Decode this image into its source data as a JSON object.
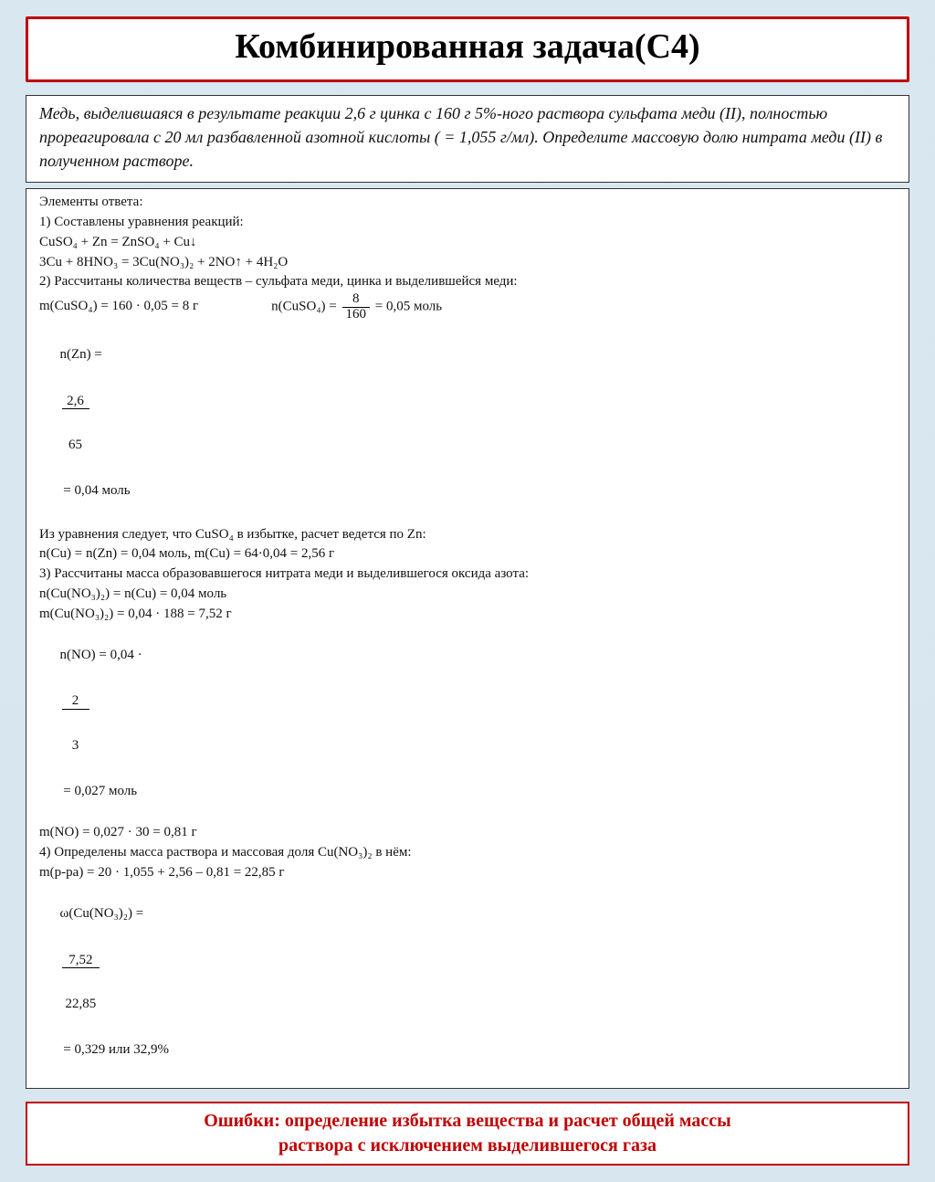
{
  "colors": {
    "background": "#d8e6f0",
    "panel_bg": "#ffffff",
    "border_red": "#c00000",
    "border_dark": "#333333",
    "text": "#111111",
    "error_text": "#c00000"
  },
  "typography": {
    "family": "Times New Roman",
    "title_size_pt": 28,
    "problem_size_pt": 14,
    "solution_size_pt": 11,
    "error_size_pt": 15,
    "problem_style": "italic",
    "error_weight": "bold"
  },
  "title": "Комбинированная задача(С4)",
  "problem": "Медь, выделившаяся в результате реакции 2,6 г цинка с 160 г 5%-ного раствора сульфата меди (II), полностью прореагировала с 20 мл разбавленной азотной кислоты (  = 1,055 г/мл). Определите массовую долю нитрата меди (II) в полученном растворе.",
  "solution": {
    "heading": "Элементы ответа:",
    "step1_label": "1) Составлены уравнения реакций:",
    "eq1": "CuSO₄ + Zn = ZnSO₄ + Cu↓",
    "eq2": "3Cu + 8HNO₃ = 3Cu(NO₃)₂ + 2NO↑ + 4H₂O",
    "step2_label": "2) Рассчитаны количества веществ – сульфата меди, цинка и выделившейся меди:",
    "m_cuso4_calc": "m(CuSO₄) = 160 · 0,05 = 8 г",
    "n_cuso4_prefix": "n(CuSO₄) = ",
    "n_cuso4_frac": {
      "num": "8",
      "den": "160"
    },
    "n_cuso4_suffix": " = 0,05 моль",
    "n_zn_prefix": "n(Zn) = ",
    "n_zn_frac": {
      "num": "2,6",
      "den": "65"
    },
    "n_zn_suffix": " = 0,04 моль",
    "excess_line": "Из уравнения следует, что CuSO₄ в избытке, расчет ведется по Zn:",
    "cu_calc": "n(Cu) = n(Zn) = 0,04 моль, m(Cu) = 64·0,04 = 2,56 г",
    "step3_label": "3) Рассчитаны масса образовавшегося нитрата меди и выделившегося оксида азота:",
    "n_cuno3": "n(Cu(NO₃)₂) = n(Cu) = 0,04 моль",
    "m_cuno3": "m(Cu(NO₃)₂) = 0,04 · 188 = 7,52 г",
    "n_no_prefix": "n(NO) = 0,04 · ",
    "n_no_frac": {
      "num": "2",
      "den": "3"
    },
    "n_no_suffix": " = 0,027 моль",
    "m_no": "m(NO) = 0,027 · 30 = 0,81 г",
    "step4_label": "4) Определены масса раствора и массовая доля Cu(NO₃)₂ в нём:",
    "m_sol": "m(р-ра) = 20 · 1,055 + 2,56 – 0,81 = 22,85 г",
    "w_prefix": "ω(Cu(NO₃)₂) = ",
    "w_frac": {
      "num": "7,52",
      "den": "22,85"
    },
    "w_suffix": " = 0,329 или 32,9%"
  },
  "error_box": {
    "line1": "Ошибки:  определение избытка вещества и расчет общей массы",
    "line2": "раствора с исключением выделившегося газа"
  }
}
